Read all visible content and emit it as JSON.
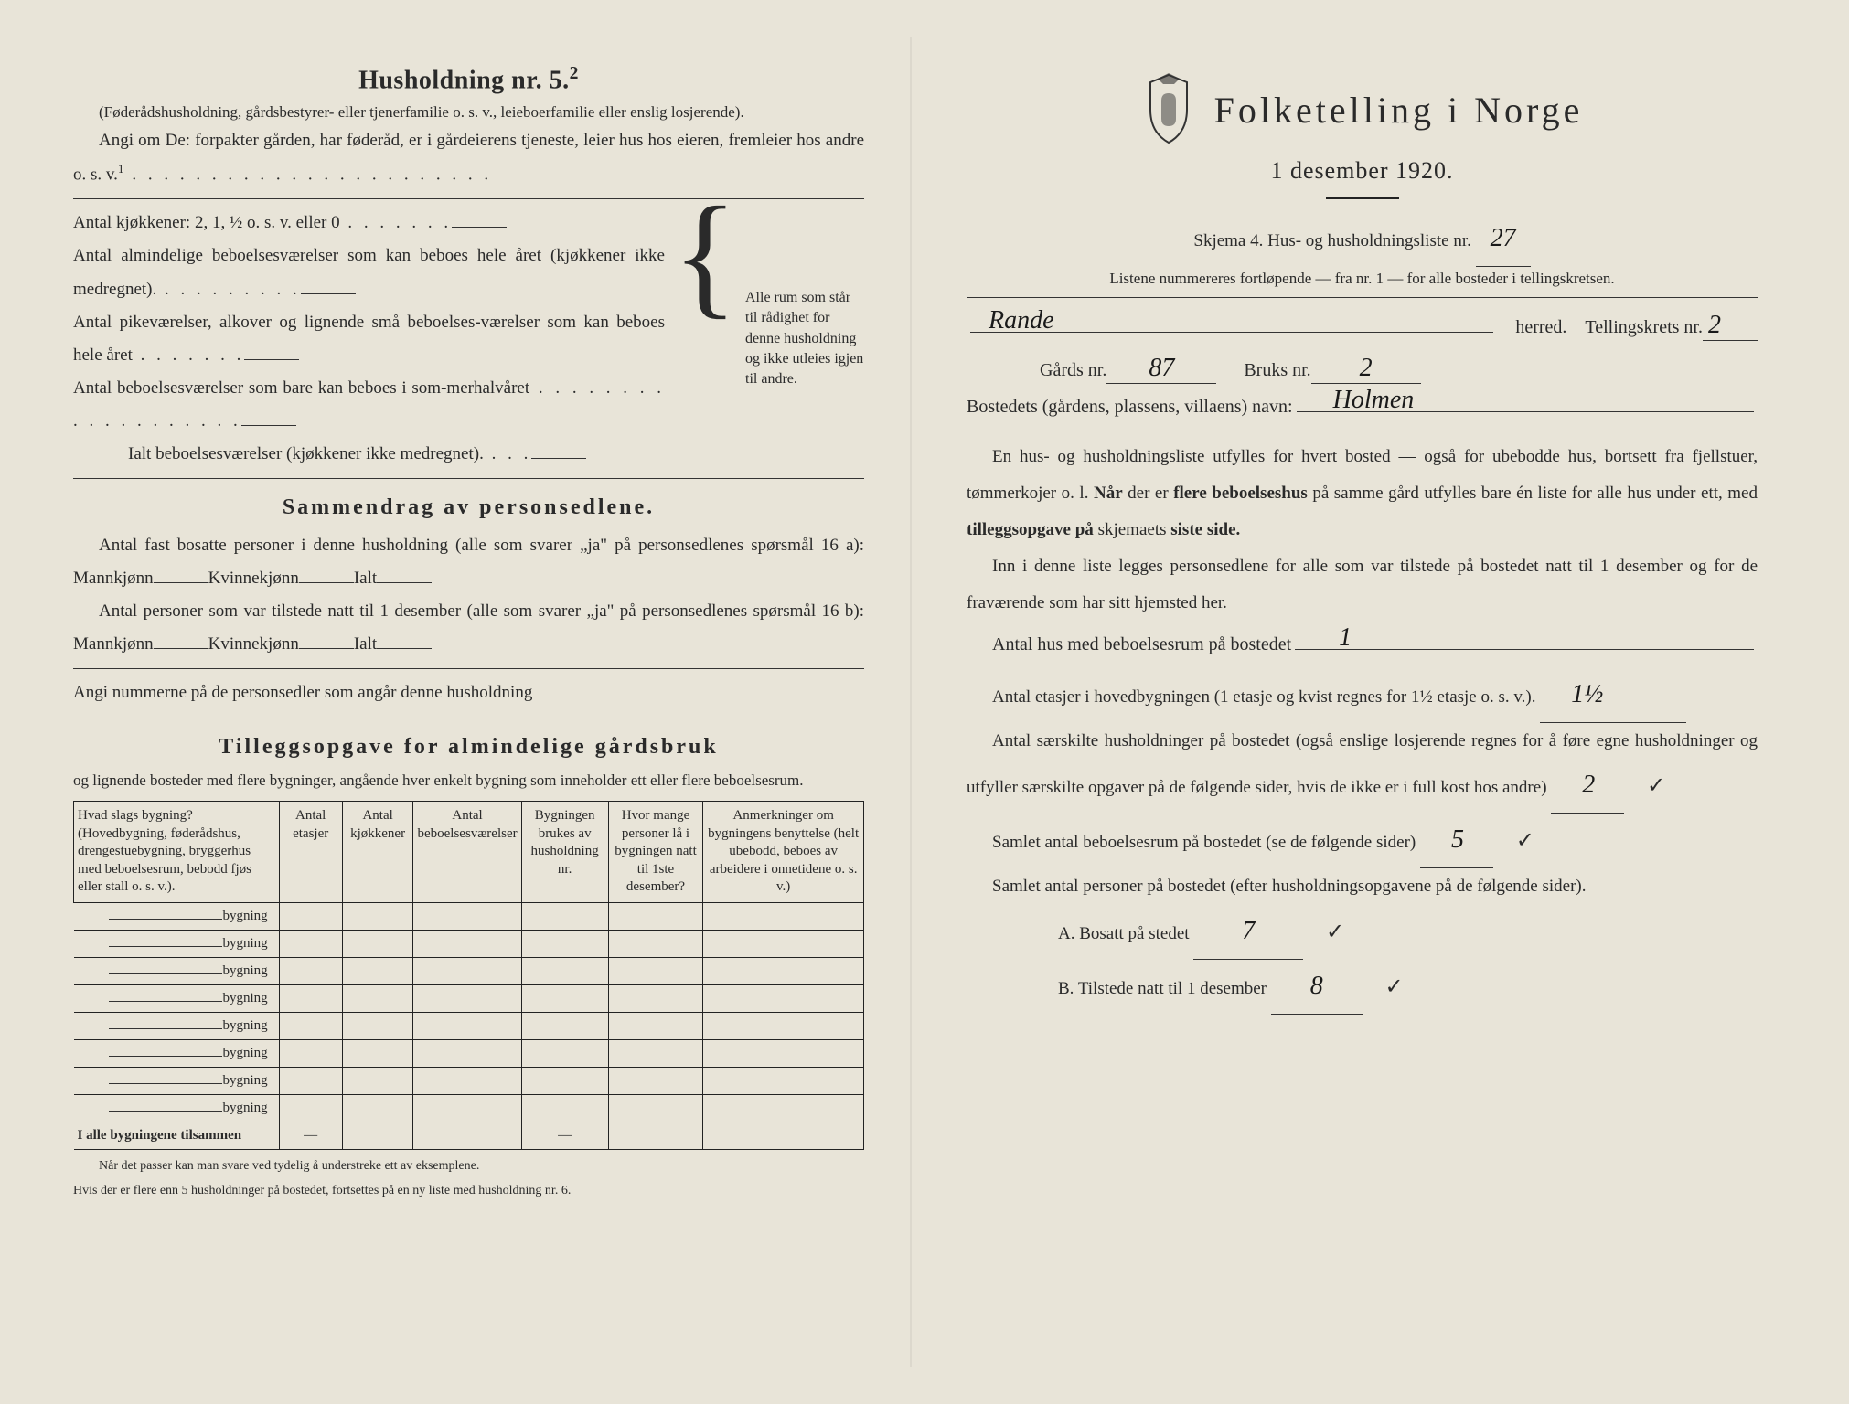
{
  "left": {
    "heading5": "Husholdning nr. 5.",
    "heading5_sup": "2",
    "parenthetical": "(Føderådshusholdning, gårdsbestyrer- eller tjenerfamilie o. s. v., leieboerfamilie eller enslig losjerende).",
    "angi_line": "Angi om De:  forpakter gården, har føderåd, er i gårdeierens tjeneste, leier hus hos eieren, fremleier hos andre o. s. v.",
    "angi_sup": "1",
    "kjokkener": "Antal kjøkkener: 2, 1, ½ o. s. v. eller 0",
    "rooms1": "Antal almindelige beboelsesværelser som kan beboes hele året (kjøkkener ikke medregnet).",
    "rooms2": "Antal pikeværelser, alkover og lignende små beboelses-værelser som kan beboes hele året",
    "rooms3": "Antal beboelsesværelser som bare kan beboes i som-merhalvåret",
    "rooms_total": "Ialt beboelsesværelser  (kjøkkener ikke medregnet).",
    "brace_text": "Alle rum som står til rådighet for denne husholdning og ikke utleies igjen til andre.",
    "sammendrag_heading": "Sammendrag av personsedlene.",
    "samm_line1a": "Antal fast bosatte personer i denne husholdning (alle som svarer „ja\" på personsedlenes spørsmål 16 a): Mannkjønn",
    "kvinne": "Kvinnekjønn",
    "ialt": "Ialt",
    "samm_line2a": "Antal personer som var tilstede natt til 1 desember (alle som svarer „ja\" på personsedlenes spørsmål 16 b): Mannkjønn",
    "angi_nummerne": "Angi nummerne på de personsedler som angår denne husholdning",
    "tillegg_heading": "Tilleggsopgave for almindelige gårdsbruk",
    "tillegg_intro": "og lignende bosteder med flere bygninger, angående hver enkelt bygning som inneholder ett eller flere beboelsesrum.",
    "table": {
      "headers": [
        "Hvad slags bygning?\n(Hovedbygning, føderådshus, drengestuebygning, bryggerhus med beboelsesrum, bebodd fjøs eller stall o. s. v.).",
        "Antal etasjer",
        "Antal kjøkkener",
        "Antal beboelsesværelser",
        "Bygningen brukes av husholdning nr.",
        "Hvor mange personer lå i bygningen natt til 1ste desember?",
        "Anmerkninger om bygningens benyttelse (helt ubebodd, beboes av arbeidere i onnetidene o. s. v.)"
      ],
      "row_label": "bygning",
      "num_rows": 8,
      "total_label": "I alle bygningene tilsammen"
    },
    "footnote1": "Når det passer kan man svare ved tydelig å understreke ett av eksemplene.",
    "footnote2": "Hvis der er flere enn 5 husholdninger på bostedet, fortsettes på en ny liste med husholdning nr. 6."
  },
  "right": {
    "main_title": "Folketelling  i  Norge",
    "sub_title": "1 desember 1920.",
    "skjema_line": "Skjema 4.   Hus- og husholdningsliste nr.",
    "skjema_nr": "27",
    "listene_note": "Listene nummereres fortløpende — fra nr. 1 — for alle bosteder i tellingskretsen.",
    "herred_hand": "Rande",
    "herred_label": "herred.",
    "tellingskrets_label": "Tellingskrets nr.",
    "tellingskrets_nr": "2",
    "gards_label": "Gårds nr.",
    "gards_nr": "87",
    "bruks_label": "Bruks nr.",
    "bruks_nr": "2",
    "bosted_label": "Bostedets (gårdens, plassens, villaens) navn:",
    "bosted_navn": "Holmen",
    "para1": "En hus- og husholdningsliste utfylles for hvert bosted — også for ubebodde hus, bortsett fra fjellstuer, tømmerkojer o. l.  Når der er flere beboelseshus på samme gård utfylles bare én liste for alle hus under ett, med tilleggsopgave på skjemaets siste side.",
    "para2": "Inn i denne liste legges personsedlene for alle som var tilstede på bostedet natt til 1 desember og for de fraværende som har sitt hjemsted her.",
    "q_antal_hus": "Antal hus med beboelsesrum på bostedet",
    "a_antal_hus": "1",
    "q_etasjer_a": "Antal etasjer i hovedbygningen (1 etasje og kvist regnes for 1½ etasje o. s. v.).",
    "a_etasjer": "1½",
    "q_hushold": "Antal særskilte husholdninger på bostedet (også enslige losjerende regnes for å føre egne husholdninger og utfyller særskilte opgaver på de følgende sider, hvis de ikke er i full kost hos andre)",
    "a_hushold": "2",
    "q_samlet_rum": "Samlet antal beboelsesrum på bostedet (se de følgende sider)",
    "a_samlet_rum": "5",
    "q_samlet_pers": "Samlet antal personer på bostedet (efter husholdningsopgavene på de følgende sider).",
    "line_a": "A.  Bosatt på stedet",
    "val_a": "7",
    "line_b": "B.  Tilstede natt til 1 desember",
    "val_b": "8",
    "checkmark": "✓"
  },
  "colors": {
    "paper": "#e8e4d8",
    "ink": "#2a2a2a"
  }
}
